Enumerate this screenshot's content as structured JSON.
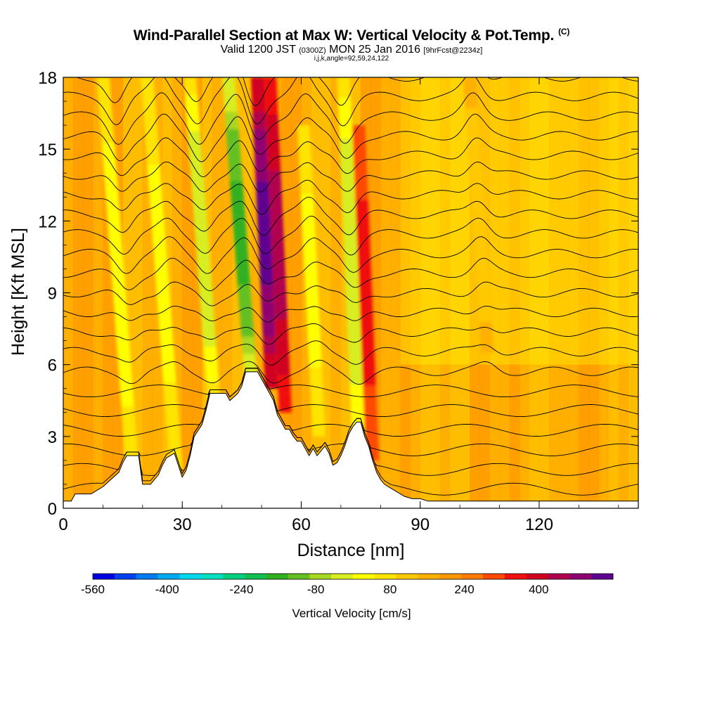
{
  "header": {
    "title": "Wind-Parallel Section at Max W: Vertical Velocity & Pot.Temp.",
    "copyright": "(C)",
    "valid_prefix": "Valid 1200 JST",
    "valid_utc": "(0300Z)",
    "valid_date": "MON 25 Jan 2016",
    "forecast": "[9hrFcst@2234z]",
    "subline": "i,j,k,angle=92,59,24,122"
  },
  "chart_data": {
    "type": "heatmap",
    "xlabel": "Distance [nm]",
    "ylabel": "Height [Kft MSL]",
    "xlim": [
      0,
      145
    ],
    "ylim": [
      0,
      18
    ],
    "xticks": [
      "0",
      "30",
      "60",
      "90",
      "120"
    ],
    "yticks": [
      "0",
      "3",
      "6",
      "9",
      "12",
      "15",
      "18"
    ],
    "terrain": {
      "x": [
        0,
        2,
        3,
        7,
        10,
        12,
        14,
        15,
        16,
        19,
        20,
        22,
        23,
        24,
        25,
        26,
        28,
        30,
        31,
        32,
        33,
        35,
        36,
        37,
        41,
        42,
        44,
        45,
        46,
        49,
        50,
        51,
        52,
        53,
        54,
        55,
        56,
        57,
        58,
        59,
        60,
        61,
        62,
        63,
        64,
        65,
        66,
        67,
        68,
        69,
        70,
        71,
        72,
        73,
        74,
        75,
        76,
        77,
        78,
        79,
        80,
        81,
        82,
        84,
        86,
        88,
        90,
        92,
        94,
        96,
        98,
        100,
        110,
        120,
        130,
        135,
        138,
        140,
        142,
        145
      ],
      "height": [
        0.3,
        0.3,
        0.6,
        0.6,
        0.9,
        1.2,
        1.5,
        1.9,
        2.2,
        2.2,
        1.0,
        1.0,
        1.2,
        1.4,
        1.8,
        2.1,
        2.3,
        1.3,
        1.6,
        2.2,
        3.0,
        3.5,
        4.1,
        4.8,
        4.8,
        4.5,
        4.8,
        5.1,
        5.7,
        5.7,
        5.4,
        5.1,
        4.8,
        4.5,
        3.9,
        3.6,
        3.3,
        3.3,
        3.0,
        2.8,
        2.8,
        2.5,
        2.2,
        2.5,
        2.2,
        2.4,
        2.6,
        2.3,
        1.8,
        1.9,
        2.2,
        2.6,
        3.1,
        3.4,
        3.6,
        3.6,
        3.0,
        2.6,
        2.0,
        1.5,
        1.2,
        1.0,
        0.9,
        0.7,
        0.5,
        0.4,
        0.4,
        0.3,
        0.3,
        0.3,
        0.3,
        0.3,
        0.3,
        0.3,
        0.3,
        0.3,
        0.3,
        0.3,
        0.3,
        0.3
      ]
    },
    "velocity_features": [
      {
        "x": 17.5,
        "z_bottom": 1.5,
        "z_top": 18,
        "tilt": 0.9,
        "value": -160
      },
      {
        "x": 28.5,
        "z_bottom": 1.6,
        "z_top": 18,
        "tilt": 0.9,
        "value": -140
      },
      {
        "x": 38,
        "z_bottom": 4.5,
        "z_top": 18,
        "tilt": 0.9,
        "value": -200
      },
      {
        "x": 47.5,
        "z_bottom": 5.0,
        "z_top": 18,
        "tilt": 0.9,
        "value": -300
      },
      {
        "x": 52.5,
        "z_bottom": 5.0,
        "z_top": 18,
        "tilt": 0.55,
        "value": 300
      },
      {
        "x": 56,
        "z_bottom": 4.0,
        "z_top": 18,
        "tilt": 0.55,
        "value": 220
      },
      {
        "x": 64.5,
        "z_bottom": 3.0,
        "z_top": 16,
        "tilt": 0.6,
        "value": -140
      },
      {
        "x": 74.5,
        "z_bottom": 2.6,
        "z_top": 18,
        "tilt": 0.5,
        "value": -200
      },
      {
        "x": 78,
        "z_bottom": 2.0,
        "z_top": 16,
        "tilt": 0.5,
        "value": 140
      },
      {
        "x": 107,
        "z_bottom": 6.5,
        "z_top": 18,
        "tilt": 0.8,
        "value": -60
      }
    ],
    "isentropes_k": [
      298,
      300,
      302,
      304,
      306,
      308,
      310,
      312,
      314,
      316,
      318,
      320,
      322,
      324,
      326,
      328,
      330,
      332,
      334,
      336,
      338,
      340
    ],
    "colorbar": {
      "label": "Vertical Velocity [cm/s]",
      "tick_labels": [
        "-560",
        "-400",
        "-240",
        "-80",
        "80",
        "240",
        "400"
      ],
      "colors": [
        "#0000e0",
        "#0040f0",
        "#007cf0",
        "#00aaf0",
        "#00d8ee",
        "#00e0c0",
        "#00d080",
        "#10c050",
        "#30b020",
        "#64c020",
        "#a8d820",
        "#d8ee20",
        "#ffff00",
        "#ffe400",
        "#ffc800",
        "#ffb000",
        "#ff9800",
        "#ff7c00",
        "#ff4800",
        "#f01010",
        "#d00020",
        "#b00050",
        "#900070",
        "#600090"
      ]
    }
  }
}
